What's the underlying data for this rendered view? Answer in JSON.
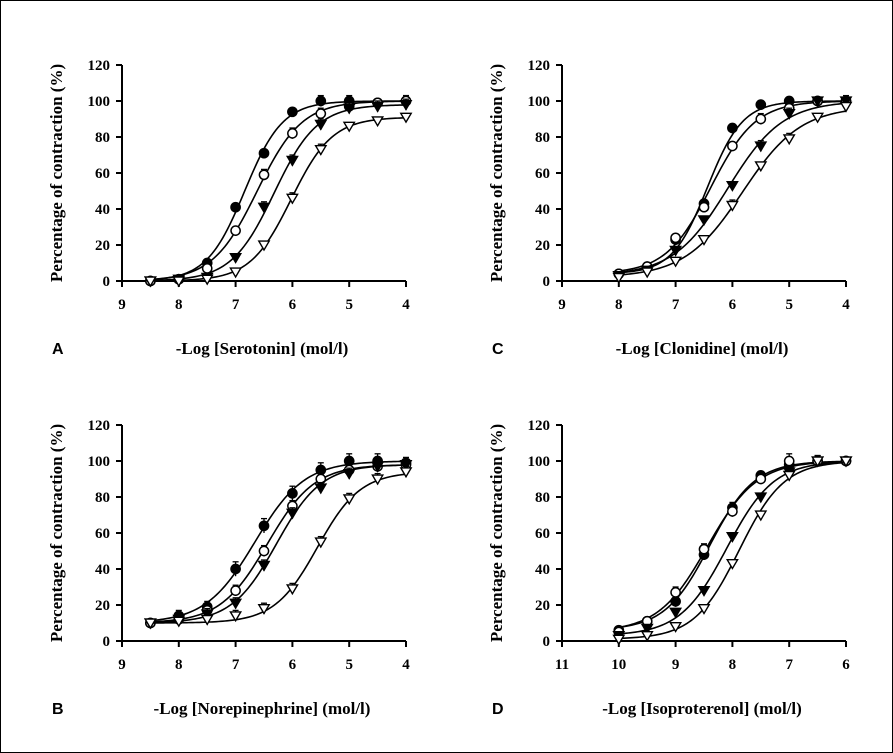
{
  "figure": {
    "colors": {
      "ink": "#000000",
      "open_fill": "#ffffff"
    },
    "legend": "none",
    "grid": false,
    "marker_names": {
      "s1": "filled-circle",
      "s2": "open-circle",
      "s3": "filled-down-triangle",
      "s4": "open-down-triangle"
    }
  },
  "chart_data": [
    {
      "panel": "A",
      "type": "line",
      "xlabel": "-Log [Serotonin] (mol/l)",
      "ylabel": "Percentage of contraction (%)",
      "xlim": [
        9,
        4
      ],
      "ylim": [
        0,
        120
      ],
      "xticks": [
        9,
        8,
        7,
        6,
        5,
        4
      ],
      "yticks": [
        0,
        20,
        40,
        60,
        80,
        100,
        120
      ],
      "series": [
        {
          "marker": "filled-circle",
          "x": [
            8.5,
            8,
            7.5,
            7,
            6.5,
            6,
            5.5,
            5,
            4.5,
            4
          ],
          "y": [
            0,
            1,
            10,
            41,
            71,
            94,
            100,
            100,
            99,
            100
          ],
          "err": [
            0,
            0,
            1,
            2,
            2,
            2,
            3,
            3,
            2,
            3
          ]
        },
        {
          "marker": "open-circle",
          "x": [
            8.5,
            8,
            7.5,
            7,
            6.5,
            6,
            5.5,
            5,
            4.5,
            4
          ],
          "y": [
            0,
            1,
            7,
            28,
            59,
            82,
            93,
            97,
            99,
            100
          ],
          "err": [
            0,
            0,
            1,
            2,
            3,
            3,
            3,
            3,
            2,
            3
          ]
        },
        {
          "marker": "filled-down-triangle",
          "x": [
            8.5,
            8,
            7.5,
            7,
            6.5,
            6,
            5.5,
            5,
            4.5,
            4
          ],
          "y": [
            0,
            1,
            2,
            13,
            41,
            67,
            87,
            96,
            97,
            98
          ],
          "err": [
            0,
            0,
            1,
            1,
            3,
            3,
            3,
            3,
            3,
            3
          ]
        },
        {
          "marker": "open-down-triangle",
          "x": [
            8.5,
            8,
            7.5,
            7,
            6.5,
            6,
            5.5,
            5,
            4.5,
            4
          ],
          "y": [
            0,
            0,
            1,
            5,
            20,
            46,
            73,
            86,
            89,
            91
          ],
          "err": [
            0,
            0,
            0,
            1,
            2,
            3,
            3,
            2,
            2,
            2
          ]
        }
      ]
    },
    {
      "panel": "C",
      "type": "line",
      "xlabel": "-Log [Clonidine] (mol/l)",
      "ylabel": "Percentage of contraction (%)",
      "xlim": [
        9,
        4
      ],
      "ylim": [
        0,
        120
      ],
      "xticks": [
        9,
        8,
        7,
        6,
        5,
        4
      ],
      "yticks": [
        0,
        20,
        40,
        60,
        80,
        100,
        120
      ],
      "series": [
        {
          "marker": "filled-circle",
          "x": [
            8,
            7.5,
            7,
            6.5,
            6,
            5.5,
            5,
            4.5,
            4
          ],
          "y": [
            4,
            8,
            23,
            43,
            85,
            98,
            100,
            100,
            100
          ],
          "err": [
            0,
            1,
            2,
            2,
            2,
            1,
            2,
            1,
            2
          ]
        },
        {
          "marker": "open-circle",
          "x": [
            8,
            7.5,
            7,
            6.5,
            6,
            5.5,
            5,
            4.5,
            4
          ],
          "y": [
            4,
            8,
            24,
            41,
            75,
            90,
            96,
            100,
            100
          ],
          "err": [
            0,
            1,
            2,
            2,
            2,
            3,
            3,
            2,
            2
          ]
        },
        {
          "marker": "filled-down-triangle",
          "x": [
            8,
            7.5,
            7,
            6.5,
            6,
            5.5,
            5,
            4.5,
            4
          ],
          "y": [
            3,
            6,
            17,
            34,
            53,
            75,
            93,
            100,
            100
          ],
          "err": [
            0,
            1,
            2,
            2,
            2,
            3,
            3,
            2,
            3
          ]
        },
        {
          "marker": "open-down-triangle",
          "x": [
            8,
            7.5,
            7,
            6.5,
            6,
            5.5,
            5,
            4.5,
            4
          ],
          "y": [
            2,
            5,
            11,
            23,
            42,
            64,
            79,
            91,
            97
          ],
          "err": [
            0,
            1,
            1,
            2,
            3,
            2,
            3,
            2,
            2
          ]
        }
      ]
    },
    {
      "panel": "B",
      "type": "line",
      "xlabel": "-Log [Norepinephrine] (mol/l)",
      "ylabel": "Percentage of contraction (%)",
      "xlim": [
        9,
        4
      ],
      "ylim": [
        0,
        120
      ],
      "xticks": [
        9,
        8,
        7,
        6,
        5,
        4
      ],
      "yticks": [
        0,
        20,
        40,
        60,
        80,
        100,
        120
      ],
      "series": [
        {
          "marker": "filled-circle",
          "x": [
            8.5,
            8,
            7.5,
            7,
            6.5,
            6,
            5.5,
            5,
            4.5,
            4
          ],
          "y": [
            10,
            14,
            19,
            40,
            64,
            82,
            95,
            100,
            100,
            99
          ],
          "err": [
            2,
            3,
            3,
            4,
            4,
            4,
            4,
            4,
            4,
            3
          ]
        },
        {
          "marker": "open-circle",
          "x": [
            8.5,
            8,
            7.5,
            7,
            6.5,
            6,
            5.5,
            5,
            4.5,
            4
          ],
          "y": [
            10,
            12,
            17,
            28,
            50,
            75,
            90,
            95,
            97,
            98
          ],
          "err": [
            2,
            2,
            3,
            3,
            3,
            3,
            3,
            3,
            3,
            2
          ]
        },
        {
          "marker": "filled-down-triangle",
          "x": [
            8.5,
            8,
            7.5,
            7,
            6.5,
            6,
            5.5,
            5,
            4.5,
            4
          ],
          "y": [
            10,
            12,
            15,
            21,
            42,
            71,
            85,
            93,
            97,
            98
          ],
          "err": [
            2,
            2,
            3,
            3,
            3,
            3,
            3,
            3,
            3,
            3
          ]
        },
        {
          "marker": "open-down-triangle",
          "x": [
            8.5,
            8,
            7.5,
            7,
            6.5,
            6,
            5.5,
            5,
            4.5,
            4
          ],
          "y": [
            10,
            11,
            12,
            14,
            18,
            29,
            55,
            79,
            90,
            94
          ],
          "err": [
            2,
            2,
            3,
            3,
            3,
            3,
            3,
            3,
            3,
            3
          ]
        }
      ]
    },
    {
      "panel": "D",
      "type": "line",
      "xlabel": "-Log [Isoproterenol] (mol/l)",
      "ylabel": "Percentage of contraction (%)",
      "xlim": [
        11,
        6
      ],
      "ylim": [
        0,
        120
      ],
      "xticks": [
        11,
        10,
        9,
        8,
        7,
        6
      ],
      "yticks": [
        0,
        20,
        40,
        60,
        80,
        100,
        120
      ],
      "series": [
        {
          "marker": "filled-circle",
          "x": [
            10,
            9.5,
            9,
            8.5,
            8,
            7.5,
            7,
            6.5,
            6
          ],
          "y": [
            6,
            11,
            22,
            48,
            74,
            92,
            98,
            100,
            100
          ],
          "err": [
            1,
            2,
            3,
            3,
            3,
            2,
            3,
            3,
            2
          ]
        },
        {
          "marker": "open-circle",
          "x": [
            10,
            9.5,
            9,
            8.5,
            8,
            7.5,
            7,
            6.5,
            6
          ],
          "y": [
            5,
            11,
            27,
            51,
            72,
            90,
            100,
            100,
            100
          ],
          "err": [
            1,
            2,
            3,
            3,
            3,
            2,
            4,
            3,
            2
          ]
        },
        {
          "marker": "filled-down-triangle",
          "x": [
            10,
            9.5,
            9,
            8.5,
            8,
            7.5,
            7,
            6.5,
            6
          ],
          "y": [
            3,
            7,
            16,
            28,
            58,
            80,
            94,
            100,
            100
          ],
          "err": [
            1,
            1,
            2,
            2,
            2,
            2,
            3,
            3,
            2
          ]
        },
        {
          "marker": "open-down-triangle",
          "x": [
            10,
            9.5,
            9,
            8.5,
            8,
            7.5,
            7,
            6.5,
            6
          ],
          "y": [
            1,
            3,
            8,
            18,
            43,
            70,
            92,
            100,
            100
          ],
          "err": [
            0,
            1,
            1,
            2,
            2,
            2,
            3,
            3,
            2
          ]
        }
      ]
    }
  ]
}
